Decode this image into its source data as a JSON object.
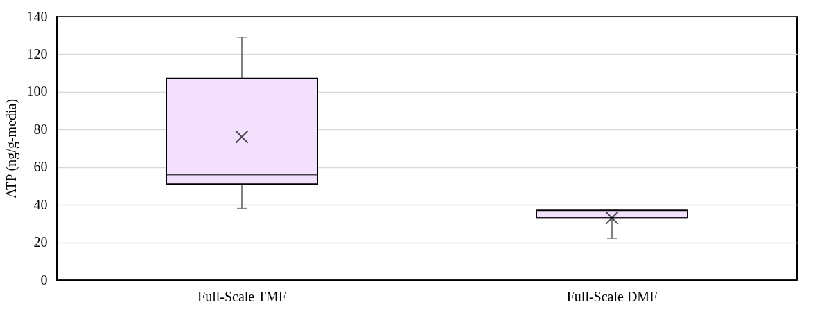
{
  "chart_data": {
    "type": "box",
    "ylabel": "ATP (ng/g-media)",
    "categories": [
      "Full-Scale TMF",
      "Full-Scale DMF"
    ],
    "color": "#f3e0fd",
    "boxes": [
      {
        "low": 38,
        "q1": 51,
        "median": 56,
        "q3": 107,
        "high": 129,
        "mean": 76
      },
      {
        "low": 22,
        "q1": 33,
        "median": 33,
        "q3": 37,
        "high": 37,
        "mean": 33
      }
    ],
    "ylim": [
      0,
      140
    ],
    "yticks": [
      0,
      20,
      40,
      60,
      80,
      100,
      120,
      140
    ],
    "grid": "y"
  }
}
